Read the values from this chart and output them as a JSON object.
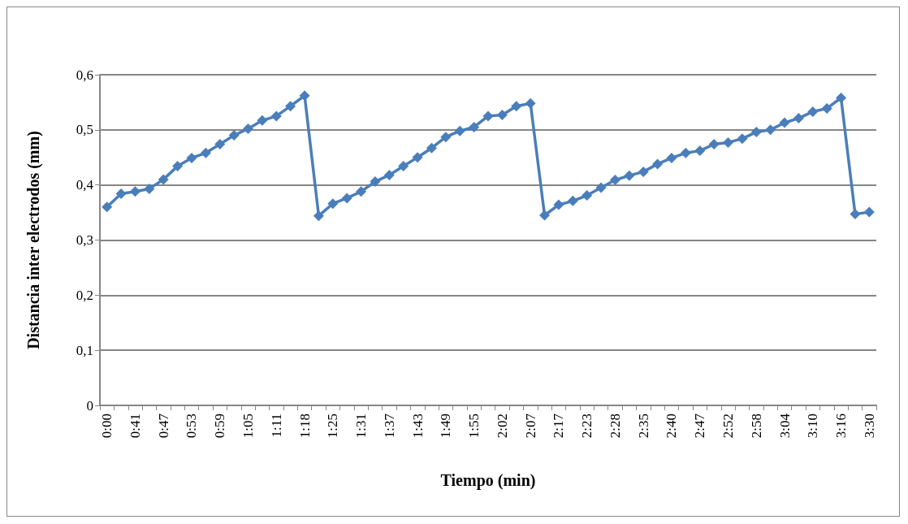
{
  "chart_data": {
    "type": "line",
    "xlabel": "Tiempo (min)",
    "ylabel": "Distancia inter electrodos (mm)",
    "categories": [
      "0:00",
      null,
      "0:41",
      null,
      "0:47",
      null,
      "0:53",
      null,
      "0:59",
      null,
      "1:05",
      null,
      "1:11",
      null,
      "1:18",
      null,
      "1:25",
      null,
      "1:31",
      null,
      "1:37",
      null,
      "1:43",
      null,
      "1:49",
      null,
      "1:55",
      null,
      "2:02",
      null,
      "2:07",
      null,
      "2:17",
      null,
      "2:23",
      null,
      "2:28",
      null,
      "2:35",
      null,
      "2:40",
      null,
      "2:47",
      null,
      "2:52",
      null,
      "2:58",
      null,
      "3:04",
      null,
      "3:10",
      null,
      "3:16",
      null,
      "3:30"
    ],
    "series": [
      {
        "color": "#4a7ebb",
        "values": [
          0.36,
          0.384,
          0.388,
          0.393,
          0.41,
          0.434,
          0.449,
          0.458,
          0.474,
          0.49,
          0.502,
          0.517,
          0.525,
          0.543,
          0.562,
          0.344,
          0.366,
          0.376,
          0.388,
          0.406,
          0.418,
          0.434,
          0.45,
          0.467,
          0.487,
          0.498,
          0.505,
          0.525,
          0.527,
          0.543,
          0.548,
          0.345,
          0.364,
          0.371,
          0.381,
          0.395,
          0.409,
          0.417,
          0.424,
          0.438,
          0.449,
          0.458,
          0.462,
          0.474,
          0.477,
          0.484,
          0.496,
          0.5,
          0.513,
          0.521,
          0.533,
          0.539,
          0.558,
          0.347,
          0.351
        ]
      }
    ],
    "ylim": [
      0,
      0.6
    ],
    "yticks": [
      {
        "value": 0,
        "label": "0"
      },
      {
        "value": 0.1,
        "label": "0,1"
      },
      {
        "value": 0.2,
        "label": "0,2"
      },
      {
        "value": 0.3,
        "label": "0,3"
      },
      {
        "value": 0.4,
        "label": "0,4"
      },
      {
        "value": 0.5,
        "label": "0,5"
      },
      {
        "value": 0.6,
        "label": "0,6"
      }
    ],
    "grid": "y",
    "marker": "diamond",
    "line_style": "solid"
  }
}
